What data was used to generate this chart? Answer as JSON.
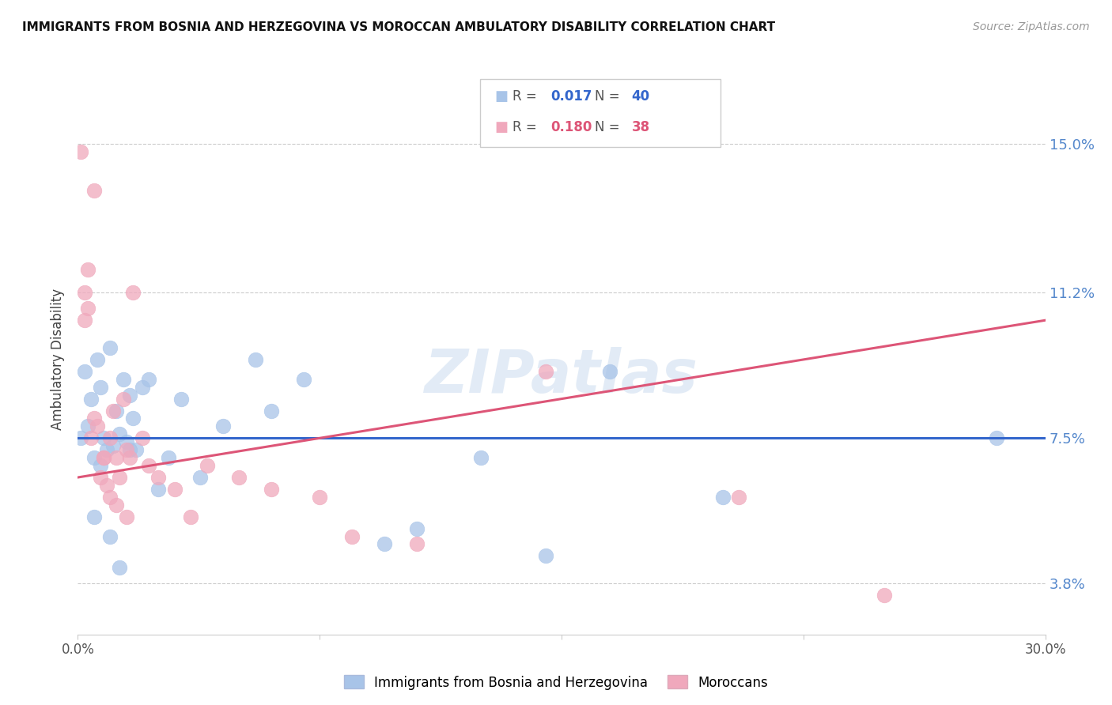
{
  "title": "IMMIGRANTS FROM BOSNIA AND HERZEGOVINA VS MOROCCAN AMBULATORY DISABILITY CORRELATION CHART",
  "source": "Source: ZipAtlas.com",
  "ylabel": "Ambulatory Disability",
  "yticks": [
    3.8,
    7.5,
    11.2,
    15.0
  ],
  "xlim": [
    0.0,
    30.0
  ],
  "ylim": [
    2.5,
    16.5
  ],
  "blue_R": "0.017",
  "blue_N": "40",
  "pink_R": "0.180",
  "pink_N": "38",
  "blue_color": "#a8c4e8",
  "pink_color": "#f0a8bc",
  "blue_line_color": "#3366cc",
  "pink_line_color": "#dd5577",
  "legend_blue_label": "Immigrants from Bosnia and Herzegovina",
  "legend_pink_label": "Moroccans",
  "watermark": "ZIPatlas",
  "blue_points_x": [
    0.1,
    0.2,
    0.3,
    0.4,
    0.5,
    0.6,
    0.7,
    0.8,
    0.9,
    1.0,
    1.1,
    1.2,
    1.3,
    1.4,
    1.5,
    1.6,
    1.7,
    1.8,
    2.0,
    2.2,
    2.5,
    2.8,
    3.2,
    3.8,
    4.5,
    5.5,
    6.0,
    7.0,
    9.5,
    10.5,
    12.5,
    14.5,
    16.5,
    20.0,
    28.5,
    0.5,
    0.7,
    1.0,
    1.3,
    1.6
  ],
  "blue_points_y": [
    7.5,
    9.2,
    7.8,
    8.5,
    7.0,
    9.5,
    8.8,
    7.5,
    7.2,
    9.8,
    7.3,
    8.2,
    7.6,
    9.0,
    7.4,
    8.6,
    8.0,
    7.2,
    8.8,
    9.0,
    6.2,
    7.0,
    8.5,
    6.5,
    7.8,
    9.5,
    8.2,
    9.0,
    4.8,
    5.2,
    7.0,
    4.5,
    9.2,
    6.0,
    7.5,
    5.5,
    6.8,
    5.0,
    4.2,
    7.2
  ],
  "pink_points_x": [
    0.1,
    0.2,
    0.3,
    0.4,
    0.5,
    0.6,
    0.7,
    0.8,
    0.9,
    1.0,
    1.1,
    1.2,
    1.3,
    1.4,
    1.5,
    1.6,
    1.7,
    2.0,
    2.2,
    2.5,
    3.0,
    3.5,
    4.0,
    5.0,
    6.0,
    7.5,
    8.5,
    10.5,
    14.5,
    20.5,
    25.0,
    0.2,
    0.3,
    0.5,
    0.8,
    1.0,
    1.2,
    1.5
  ],
  "pink_points_y": [
    14.8,
    11.2,
    10.8,
    7.5,
    13.8,
    7.8,
    6.5,
    7.0,
    6.3,
    7.5,
    8.2,
    7.0,
    6.5,
    8.5,
    7.2,
    7.0,
    11.2,
    7.5,
    6.8,
    6.5,
    6.2,
    5.5,
    6.8,
    6.5,
    6.2,
    6.0,
    5.0,
    4.8,
    9.2,
    6.0,
    3.5,
    10.5,
    11.8,
    8.0,
    7.0,
    6.0,
    5.8,
    5.5
  ],
  "blue_line_start_y": 7.5,
  "blue_line_end_y": 7.5,
  "pink_line_start_y": 6.5,
  "pink_line_end_y": 10.5
}
